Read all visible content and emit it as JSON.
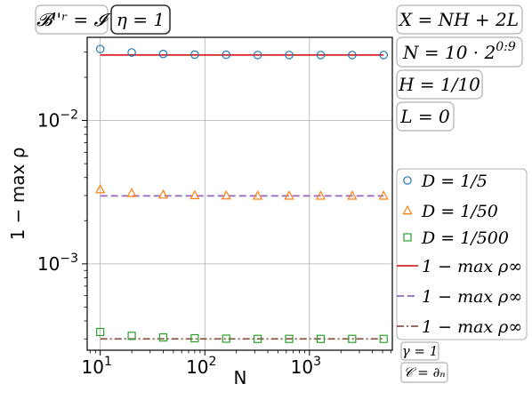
{
  "chart_data": {
    "type": "scatter",
    "xscale": "log",
    "yscale": "log",
    "xlabel": "N",
    "ylabel": "1 − max ρ",
    "xlim": [
      7.5,
      6200
    ],
    "ylim": [
      0.00025,
      0.038
    ],
    "grid": true,
    "x_ticks": [
      {
        "value": 10,
        "base": "10",
        "exp": "1"
      },
      {
        "value": 100,
        "base": "10",
        "exp": "2"
      },
      {
        "value": 1000,
        "base": "10",
        "exp": "3"
      }
    ],
    "y_ticks": [
      {
        "value": 0.01,
        "base": "10",
        "exp": "−2"
      },
      {
        "value": 0.001,
        "base": "10",
        "exp": "−3"
      }
    ],
    "x": [
      10,
      20,
      40,
      80,
      160,
      320,
      640,
      1280,
      2560,
      5120
    ],
    "series": [
      {
        "name": "D = 1/5",
        "marker": "circle",
        "color": "#1f77b4",
        "values": [
          0.0315,
          0.0298,
          0.0291,
          0.0288,
          0.0287,
          0.0286,
          0.0286,
          0.0286,
          0.0286,
          0.0286
        ]
      },
      {
        "name": "D = 1/50",
        "marker": "triangle",
        "color": "#ff7f0e",
        "values": [
          0.0033,
          0.00311,
          0.00303,
          0.003,
          0.00299,
          0.00298,
          0.00298,
          0.00298,
          0.00298,
          0.00298
        ]
      },
      {
        "name": "D = 1/500",
        "marker": "square",
        "color": "#2ca02c",
        "values": [
          0.000335,
          0.000315,
          0.000307,
          0.000303,
          0.000301,
          0.0003,
          0.0003,
          0.0003,
          0.0003,
          0.0003
        ]
      },
      {
        "name": "1 − max ρ∞",
        "line": "solid",
        "color": "#d62728",
        "value": 0.0286
      },
      {
        "name": "1 − max ρ∞",
        "line": "dashed",
        "color": "#9467bd",
        "value": 0.00298
      },
      {
        "name": "1 − max ρ∞",
        "line": "dashdot",
        "color": "#8c564b",
        "value": 0.0003
      }
    ],
    "legend_position": "right"
  },
  "annotations": {
    "boundary": "𝓑ˡ'ʳ = 𝓘",
    "eta": "η = 1",
    "x_def": "X = NH + 2L",
    "n_def_base": "N = 10 · 2",
    "n_def_exp": "0:9",
    "h_def": "H = 1/10",
    "l_def": "L = 0",
    "gamma": "γ = 1",
    "c_def": "𝒞 = ∂ₙ"
  }
}
